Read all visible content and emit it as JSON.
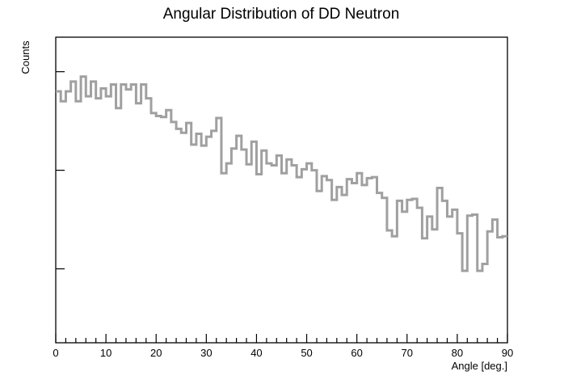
{
  "chart_data": {
    "type": "histogram",
    "title": "Angular Distribution of DD Neutron",
    "xlabel": "Angle [deg.]",
    "ylabel": "Counts",
    "xlim": [
      0,
      90
    ],
    "ylim": [
      0,
      310
    ],
    "bin_width": 1,
    "x_ticks": [
      "0",
      "10",
      "20",
      "30",
      "40",
      "50",
      "60",
      "70",
      "80",
      "90"
    ],
    "y_major_ticks": [
      75,
      175,
      275
    ],
    "grid": false,
    "line_color": "#a0a0a0",
    "series": [
      {
        "bins_start": 0,
        "values": [
          255,
          245,
          255,
          265,
          245,
          270,
          250,
          265,
          248,
          258,
          250,
          262,
          238,
          262,
          257,
          262,
          243,
          262,
          248,
          233,
          230,
          229,
          236,
          224,
          217,
          213,
          223,
          201,
          212,
          200,
          209,
          215,
          228,
          172,
          182,
          197,
          210,
          196,
          181,
          204,
          171,
          195,
          182,
          180,
          190,
          172,
          186,
          180,
          168,
          176,
          182,
          175,
          154,
          169,
          165,
          145,
          158,
          150,
          166,
          162,
          172,
          160,
          167,
          168,
          152,
          147,
          114,
          108,
          144,
          133,
          145,
          146,
          137,
          106,
          128,
          115,
          157,
          144,
          128,
          135,
          111,
          73,
          129,
          130,
          73,
          80,
          113,
          125,
          107,
          108
        ]
      }
    ]
  }
}
